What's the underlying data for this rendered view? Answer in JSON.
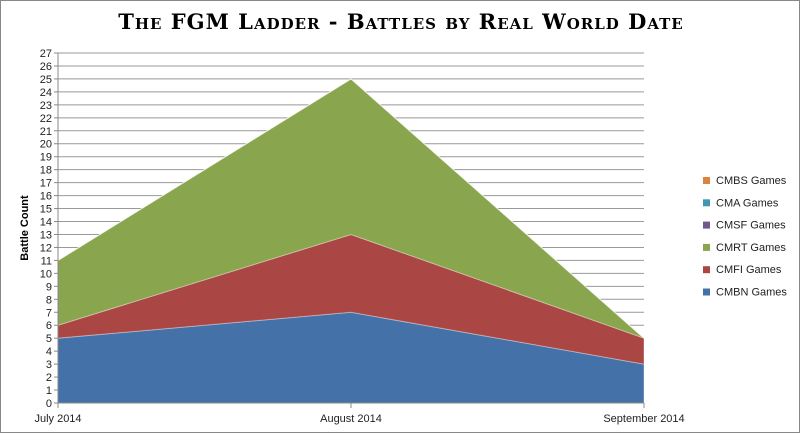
{
  "chart_data": {
    "type": "area",
    "stacked": true,
    "title": "The FGM Ladder - Battles by Real World Date",
    "xlabel": "",
    "ylabel": "Battle Count",
    "categories": [
      "July 2014",
      "August 2014",
      "September 2014"
    ],
    "ylim": [
      0,
      27
    ],
    "yticks": [
      0,
      1,
      2,
      3,
      4,
      5,
      6,
      7,
      8,
      9,
      10,
      11,
      12,
      13,
      14,
      15,
      16,
      17,
      18,
      19,
      20,
      21,
      22,
      23,
      24,
      25,
      26,
      27
    ],
    "grid": true,
    "legend_position": "right",
    "series": [
      {
        "name": "CMBN Games",
        "values": [
          5,
          7,
          3
        ],
        "color": "#4472a8"
      },
      {
        "name": "CMFI Games",
        "values": [
          1,
          6,
          2
        ],
        "color": "#aa4643"
      },
      {
        "name": "CMRT Games",
        "values": [
          5,
          12,
          0
        ],
        "color": "#89a54e"
      },
      {
        "name": "CMSF Games",
        "values": [
          0,
          0,
          0
        ],
        "color": "#71588f"
      },
      {
        "name": "CMA Games",
        "values": [
          0,
          0,
          0
        ],
        "color": "#4198af"
      },
      {
        "name": "CMBS Games",
        "values": [
          0,
          0,
          0
        ],
        "color": "#db843d"
      }
    ]
  }
}
